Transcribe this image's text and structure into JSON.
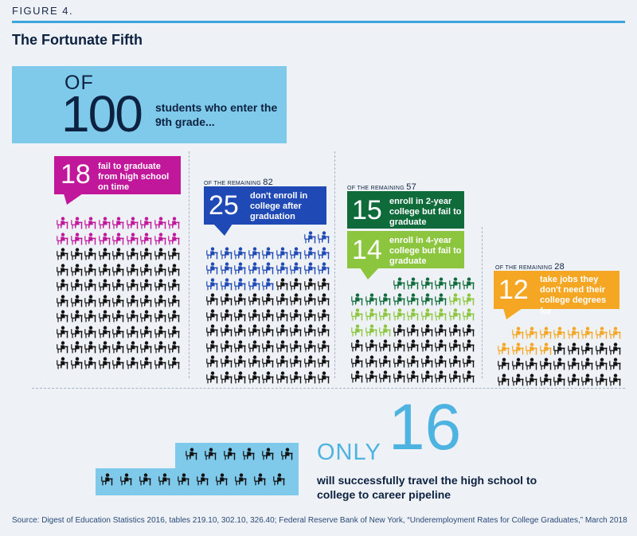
{
  "figure_label": "FIGURE 4.",
  "title": "The Fortunate Fifth",
  "hero": {
    "of": "OF",
    "number": "100",
    "text": "students who enter the 9th grade..."
  },
  "panels": [
    {
      "callouts": [
        {
          "number": "18",
          "text": "fail to graduate from high school on time"
        }
      ]
    },
    {
      "remaining_label": "OF THE REMAINING",
      "remaining": "82",
      "callouts": [
        {
          "number": "25",
          "text": "don't enroll in college after graduation"
        }
      ]
    },
    {
      "remaining_label": "OF THE REMAINING",
      "remaining": "57",
      "callouts": [
        {
          "number": "15",
          "text": "enroll in 2-year college but fail to graduate"
        },
        {
          "number": "14",
          "text": "enroll in 4-year college but fail to graduate"
        }
      ]
    },
    {
      "remaining_label": "OF THE REMAINING",
      "remaining": "28",
      "callouts": [
        {
          "number": "12",
          "text": "take jobs they don't need their college degrees for"
        }
      ]
    }
  ],
  "conclusion": {
    "only": "ONLY",
    "number": "16",
    "text": "will successfully travel the high school to college to career pipeline"
  },
  "source": "Source: Digest of Education Statistics 2016, tables 219.10, 302.10, 326.40; Federal Reserve Bank of New York, “Underemployment Rates for College Graduates,” March 2018",
  "colors": {
    "magenta": "#c0179b",
    "blue": "#1f49b5",
    "dark_green": "#0f6b3a",
    "light_green": "#8cc63f",
    "orange": "#f5a623",
    "black": "#111111",
    "sky": "#7fcaea"
  },
  "chart_data": {
    "type": "pictogram",
    "total": 100,
    "stages": [
      {
        "remaining": 100,
        "count": 18,
        "label": "fail to graduate from high school on time"
      },
      {
        "remaining": 82,
        "count": 25,
        "label": "don't enroll in college after graduation"
      },
      {
        "remaining": 57,
        "count": 15,
        "label": "enroll in 2-year college but fail to graduate"
      },
      {
        "remaining": 57,
        "count": 14,
        "label": "enroll in 4-year college but fail to graduate"
      },
      {
        "remaining": 28,
        "count": 12,
        "label": "take jobs they don't need their college degrees for"
      }
    ],
    "result": 16
  }
}
